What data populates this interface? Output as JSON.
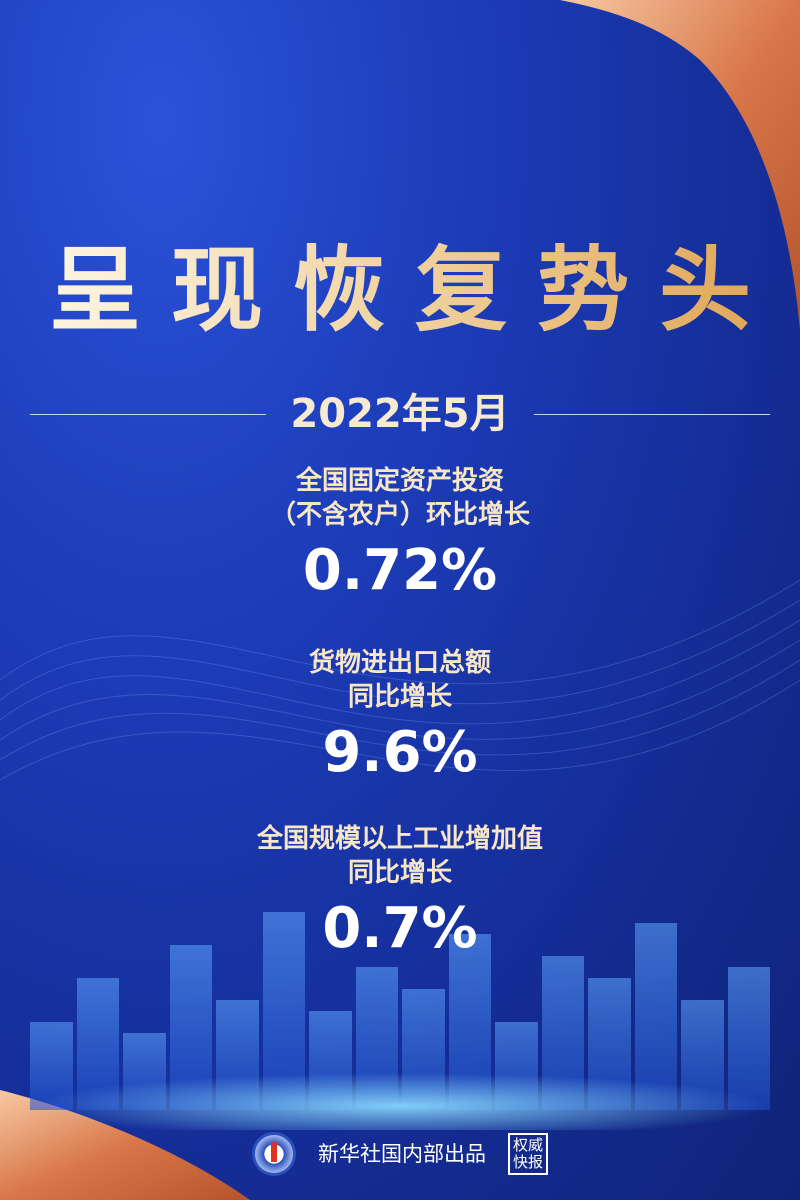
{
  "title": "呈现恢复势头",
  "date": "2022年5月",
  "stats": [
    {
      "label_line1": "全国固定资产投资",
      "label_line2": "（不含农户）环比增长",
      "value": "0.72%"
    },
    {
      "label_line1": "货物进出口总额",
      "label_line2": "同比增长",
      "value": "9.6%"
    },
    {
      "label_line1": "全国规模以上工业增加值",
      "label_line2": "同比增长",
      "value": "0.7%"
    }
  ],
  "footer": {
    "publisher": "新华社国内部出品",
    "stamp": "权威快报"
  },
  "colors": {
    "background": "#1c3cb8",
    "title_gold": "#dfa24e",
    "ribbon": "#d9774a"
  }
}
